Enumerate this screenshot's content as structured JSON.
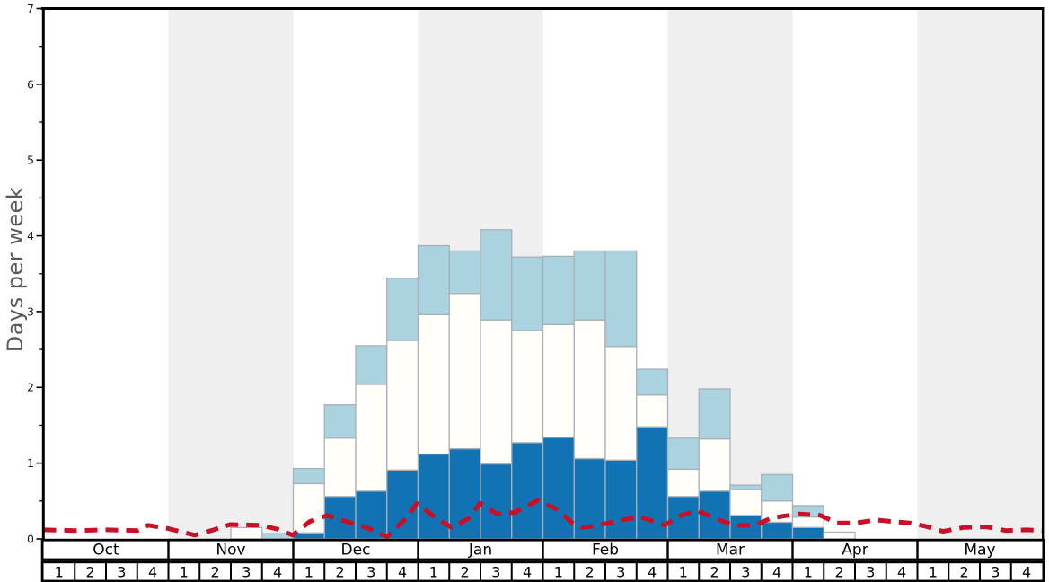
{
  "chart_data": {
    "type": "bar",
    "title": "",
    "xlabel": "",
    "ylabel": "Days per week",
    "ylim": [
      0,
      7
    ],
    "grid": false,
    "legend": "none",
    "y_major_ticks": [
      "0",
      "1",
      "2",
      "3",
      "4",
      "5",
      "6",
      "7"
    ],
    "y_minor_tick_step": 0.5,
    "months": [
      "Oct",
      "Nov",
      "Dec",
      "Jan",
      "Feb",
      "Mar",
      "Apr",
      "May"
    ],
    "weeks_per_month": [
      "1",
      "2",
      "3",
      "4"
    ],
    "shaded_months": [
      "Nov",
      "Jan",
      "Mar",
      "May"
    ],
    "shaded_month_indices": [
      1,
      3,
      5,
      7
    ],
    "categories_weeks": [
      "Oct-1",
      "Oct-2",
      "Oct-3",
      "Oct-4",
      "Nov-1",
      "Nov-2",
      "Nov-3",
      "Nov-4",
      "Dec-1",
      "Dec-2",
      "Dec-3",
      "Dec-4",
      "Jan-1",
      "Jan-2",
      "Jan-3",
      "Jan-4",
      "Feb-1",
      "Feb-2",
      "Feb-3",
      "Feb-4",
      "Mar-1",
      "Mar-2",
      "Mar-3",
      "Mar-4",
      "Apr-1",
      "Apr-2",
      "Apr-3",
      "Apr-4",
      "May-1",
      "May-2",
      "May-3",
      "May-4"
    ],
    "series": [
      {
        "name": "dark-blue-bottom-segment",
        "color": "#1173b4",
        "values": [
          0,
          0,
          0,
          0,
          0,
          0,
          0,
          0,
          0.08,
          0.56,
          0.63,
          0.91,
          1.12,
          1.19,
          0.99,
          1.27,
          1.34,
          1.06,
          1.04,
          1.48,
          0.56,
          0.63,
          0.31,
          0.22,
          0.15,
          0,
          0,
          0,
          0,
          0,
          0,
          0
        ]
      },
      {
        "name": "white-middle-segment",
        "color": "#fffef8",
        "values": [
          0,
          0,
          0,
          0,
          0,
          0,
          0.15,
          0,
          0.65,
          0.77,
          1.41,
          1.71,
          1.84,
          2.05,
          1.9,
          1.48,
          1.49,
          1.83,
          1.5,
          0.42,
          0.36,
          0.69,
          0.34,
          0.28,
          0.14,
          0.09,
          0,
          0,
          0,
          0,
          0,
          0
        ]
      },
      {
        "name": "light-blue-top-segment",
        "color": "#abd2df",
        "values": [
          0,
          0,
          0,
          0,
          0,
          0,
          0,
          0.07,
          0.2,
          0.44,
          0.51,
          0.82,
          0.91,
          0.56,
          1.19,
          0.97,
          0.9,
          0.91,
          1.26,
          0.34,
          0.41,
          0.66,
          0.06,
          0.35,
          0.15,
          0,
          0,
          0,
          0,
          0,
          0,
          0
        ]
      }
    ],
    "line_series": {
      "name": "red-dashed-line",
      "style": "dashed",
      "color": "#c81126",
      "points_week_value": [
        [
          0,
          0.12
        ],
        [
          1,
          0.11
        ],
        [
          2,
          0.12
        ],
        [
          3,
          0.11
        ],
        [
          3.35,
          0.18
        ],
        [
          3.96,
          0.14
        ],
        [
          4.85,
          0.05
        ],
        [
          5.37,
          0.11
        ],
        [
          5.97,
          0.19
        ],
        [
          6.95,
          0.18
        ],
        [
          7.48,
          0.13
        ],
        [
          7.99,
          0.05
        ],
        [
          8.53,
          0.23
        ],
        [
          9.09,
          0.31
        ],
        [
          9.7,
          0.23
        ],
        [
          10.34,
          0.15
        ],
        [
          11.01,
          0.03
        ],
        [
          11.61,
          0.27
        ],
        [
          11.96,
          0.47
        ],
        [
          12.52,
          0.29
        ],
        [
          13.07,
          0.15
        ],
        [
          13.62,
          0.27
        ],
        [
          13.98,
          0.47
        ],
        [
          14.53,
          0.33
        ],
        [
          15.09,
          0.35
        ],
        [
          15.84,
          0.51
        ],
        [
          16.45,
          0.39
        ],
        [
          16.94,
          0.21
        ],
        [
          17.25,
          0.15
        ],
        [
          17.65,
          0.17
        ],
        [
          18.55,
          0.25
        ],
        [
          19.12,
          0.29
        ],
        [
          19.76,
          0.2
        ],
        [
          19.9,
          0.18
        ],
        [
          20.42,
          0.31
        ],
        [
          20.96,
          0.37
        ],
        [
          21.53,
          0.27
        ],
        [
          22.11,
          0.18
        ],
        [
          22.78,
          0.18
        ],
        [
          23.3,
          0.27
        ],
        [
          23.69,
          0.3
        ],
        [
          24.22,
          0.33
        ],
        [
          24.89,
          0.31
        ],
        [
          25.42,
          0.21
        ],
        [
          26.04,
          0.21
        ],
        [
          26.66,
          0.25
        ],
        [
          27.19,
          0.23
        ],
        [
          27.76,
          0.21
        ],
        [
          28.24,
          0.17
        ],
        [
          28.82,
          0.1
        ],
        [
          29.48,
          0.15
        ],
        [
          30.2,
          0.16
        ],
        [
          30.83,
          0.11
        ],
        [
          31.49,
          0.12
        ],
        [
          32,
          0.11
        ]
      ]
    },
    "colors": {
      "band": "#efefef",
      "plot_background": "#ffffff",
      "bar_outline": "#aab0b8",
      "axis": "#000000",
      "tick_text": "#1a1a1a",
      "ylabel_text": "#595959"
    }
  }
}
